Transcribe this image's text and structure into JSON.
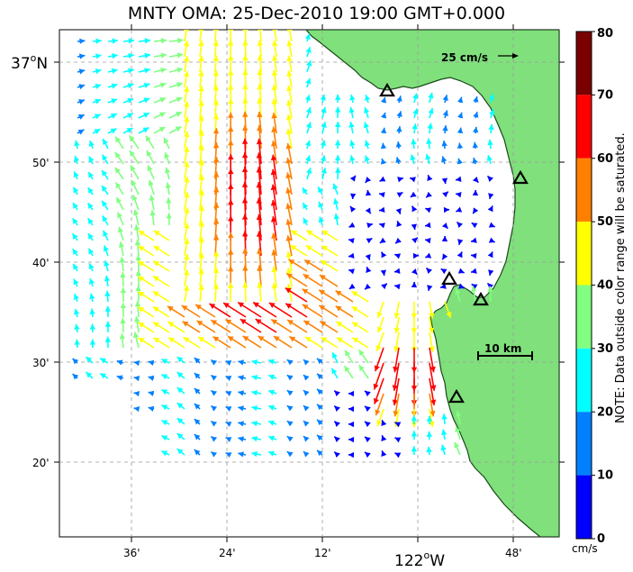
{
  "title": "MNTY OMA: 25-Dec-2010 19:00 GMT+0.000",
  "axes": {
    "lat_labels": [
      {
        "text": "37°N",
        "sup_o": true,
        "value_min": 0
      },
      {
        "text": "50'",
        "value_min": 50
      },
      {
        "text": "40'",
        "value_min": 40
      },
      {
        "text": "30'",
        "value_min": 30
      },
      {
        "text": "20'",
        "value_min": 20
      }
    ],
    "lon_labels": [
      {
        "text": "36'",
        "value_min": 36
      },
      {
        "text": "24'",
        "value_min": 24
      },
      {
        "text": "12'",
        "value_min": 12
      },
      {
        "text": "122°W",
        "value_min": 0
      },
      {
        "text": "48'",
        "value_min": 48
      }
    ],
    "lat_tick_display": [
      "37",
      "N",
      "50'",
      "40'",
      "30'",
      "20'"
    ],
    "lon_tick_display": [
      "36'",
      "24'",
      "12'",
      "122",
      "W",
      "48'"
    ]
  },
  "annotations": {
    "scale_vector_label": "25 cm/s",
    "scale_bar_label": "10 km"
  },
  "colorbar": {
    "ticks": [
      "80",
      "70",
      "60",
      "50",
      "40",
      "30",
      "20",
      "10",
      "0"
    ],
    "unit": "cm/s",
    "note": "NOTE: Data outside color range will be saturated.",
    "colors": [
      "#7a0000",
      "#ff0000",
      "#ff8000",
      "#ffff00",
      "#80ff80",
      "#00ffff",
      "#0080ff",
      "#0000ff"
    ]
  },
  "land_color": "#80e07c",
  "stations": [
    "station-1",
    "station-2",
    "station-3",
    "station-4",
    "station-5"
  ]
}
